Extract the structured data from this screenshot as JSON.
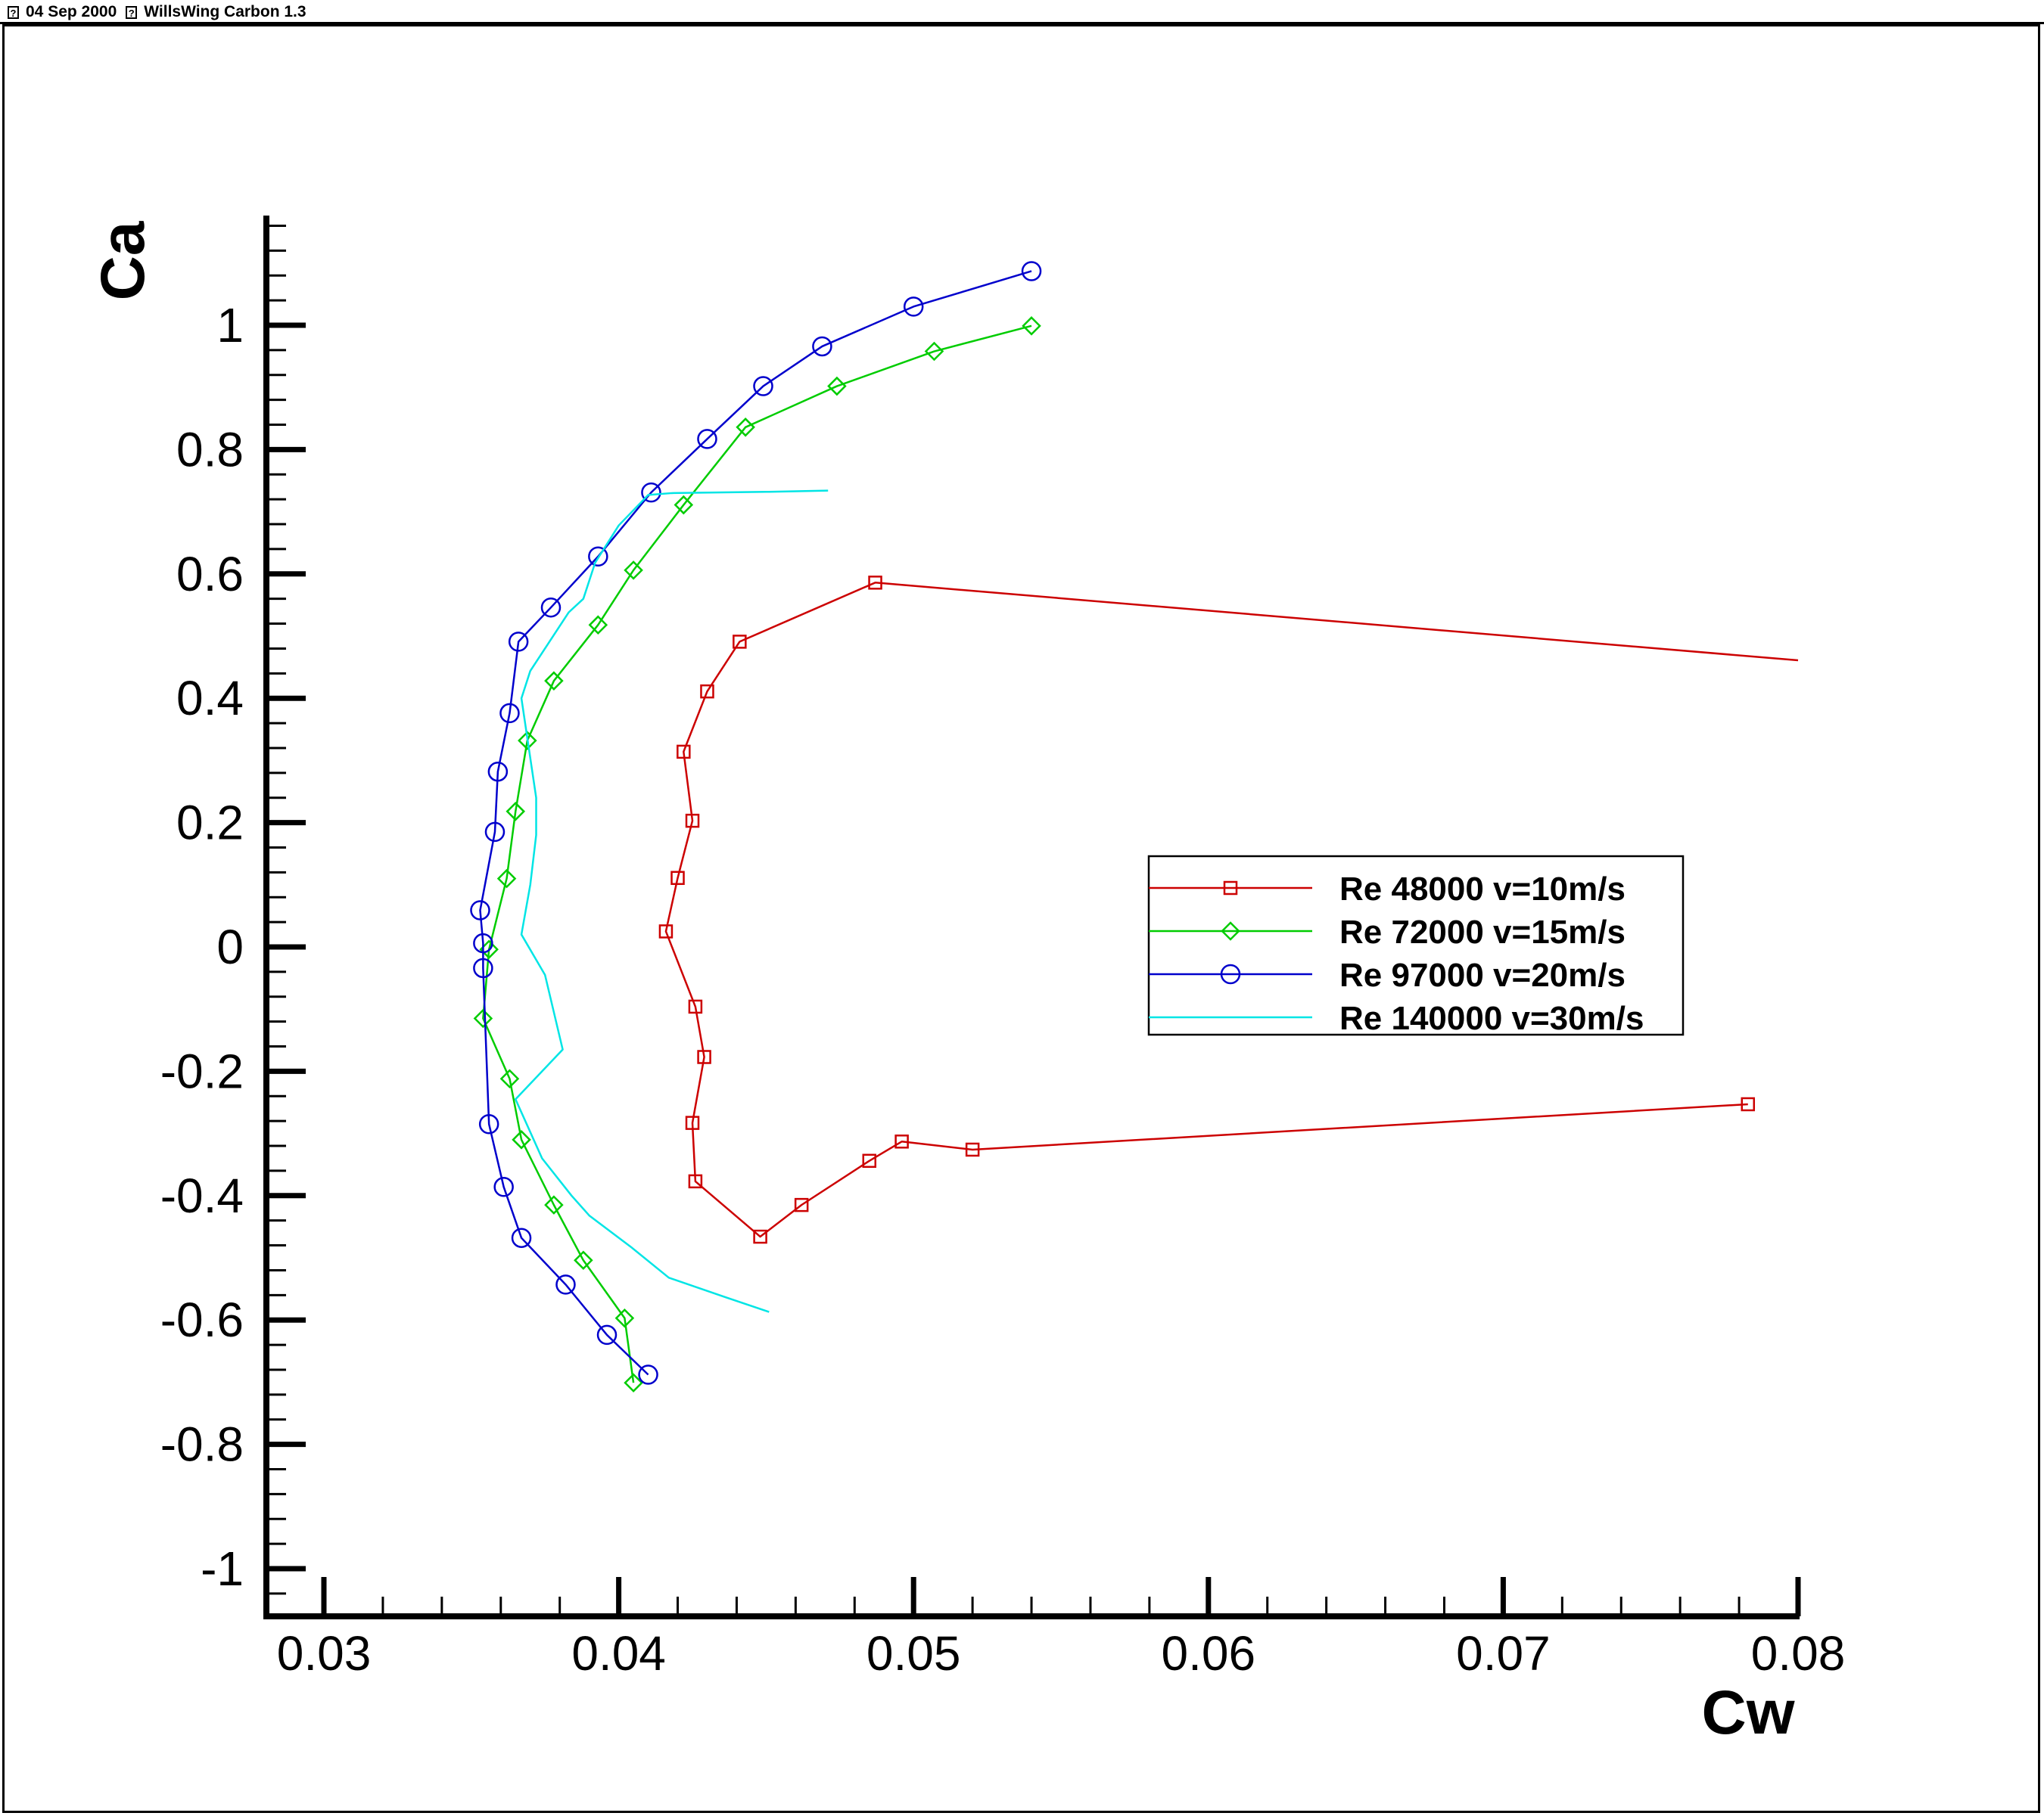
{
  "header": {
    "date": "04 Sep 2000",
    "title": "WillsWing Carbon 1.3",
    "marker_glyph": "?"
  },
  "chart_data": {
    "type": "line",
    "title": "",
    "xlabel": "Cw",
    "ylabel": "Ca",
    "xlim": [
      0.028,
      0.08
    ],
    "ylim": [
      -1.06,
      1.17
    ],
    "xticks": [
      0.03,
      0.04,
      0.05,
      0.06,
      0.07,
      0.08
    ],
    "xtick_labels": [
      "0.03",
      "0.04",
      "0.05",
      "0.06",
      "0.07",
      "0.08"
    ],
    "yticks": [
      -1,
      -0.8,
      -0.6,
      -0.4,
      -0.2,
      0,
      0.2,
      0.4,
      0.6,
      0.8,
      1
    ],
    "ytick_labels": [
      "-1",
      "-0.8",
      "-0.6",
      "-0.4",
      "-0.2",
      "0",
      "0.2",
      "0.4",
      "0.6",
      "0.8",
      "1"
    ],
    "grid": false,
    "legend_position": "right",
    "series": [
      {
        "name": "Re 48000 v=10m/s",
        "color": "#cc0000",
        "marker": "square",
        "points": [
          [
            0.08,
            0.461
          ],
          [
            0.0487,
            0.586
          ],
          [
            0.0441,
            0.491
          ],
          [
            0.043,
            0.411
          ],
          [
            0.0422,
            0.314
          ],
          [
            0.0425,
            0.203
          ],
          [
            0.042,
            0.111
          ],
          [
            0.0416,
            0.025
          ],
          [
            0.0426,
            -0.096
          ],
          [
            0.0429,
            -0.177
          ],
          [
            0.0425,
            -0.283
          ],
          [
            0.0426,
            -0.377
          ],
          [
            0.0448,
            -0.466
          ],
          [
            0.0462,
            -0.415
          ],
          [
            0.0485,
            -0.344
          ],
          [
            0.0496,
            -0.313
          ],
          [
            0.052,
            -0.326
          ],
          [
            0.0783,
            -0.253
          ]
        ]
      },
      {
        "name": "Re 72000 v=15m/s",
        "color": "#00cc00",
        "marker": "diamond",
        "points": [
          [
            0.054,
            0.999
          ],
          [
            0.0507,
            0.958
          ],
          [
            0.0474,
            0.902
          ],
          [
            0.0443,
            0.836
          ],
          [
            0.0422,
            0.711
          ],
          [
            0.0405,
            0.606
          ],
          [
            0.0393,
            0.518
          ],
          [
            0.0378,
            0.428
          ],
          [
            0.0369,
            0.332
          ],
          [
            0.0365,
            0.218
          ],
          [
            0.0362,
            0.11
          ],
          [
            0.0356,
            -0.004
          ],
          [
            0.0354,
            -0.115
          ],
          [
            0.0363,
            -0.212
          ],
          [
            0.0367,
            -0.31
          ],
          [
            0.0378,
            -0.415
          ],
          [
            0.0388,
            -0.504
          ],
          [
            0.0402,
            -0.597
          ],
          [
            0.0405,
            -0.701
          ]
        ]
      },
      {
        "name": "Re 97000 v=20m/s",
        "color": "#0000cc",
        "marker": "circle",
        "points": [
          [
            0.054,
            1.087
          ],
          [
            0.05,
            1.03
          ],
          [
            0.0469,
            0.966
          ],
          [
            0.0449,
            0.902
          ],
          [
            0.043,
            0.817
          ],
          [
            0.0411,
            0.731
          ],
          [
            0.0393,
            0.628
          ],
          [
            0.0377,
            0.546
          ],
          [
            0.0366,
            0.491
          ],
          [
            0.0363,
            0.376
          ],
          [
            0.0359,
            0.282
          ],
          [
            0.0358,
            0.185
          ],
          [
            0.0353,
            0.059
          ],
          [
            0.0354,
            0.006
          ],
          [
            0.0354,
            -0.034
          ],
          [
            0.0356,
            -0.285
          ],
          [
            0.0361,
            -0.386
          ],
          [
            0.0367,
            -0.468
          ],
          [
            0.0382,
            -0.543
          ],
          [
            0.0396,
            -0.624
          ],
          [
            0.041,
            -0.688
          ]
        ]
      },
      {
        "name": "Re 140000 v=30m/s",
        "color": "#00e5e5",
        "marker": "none",
        "points": [
          [
            0.0471,
            0.734
          ],
          [
            0.045,
            0.732
          ],
          [
            0.0418,
            0.73
          ],
          [
            0.041,
            0.727
          ],
          [
            0.04,
            0.678
          ],
          [
            0.0392,
            0.618
          ],
          [
            0.0388,
            0.56
          ],
          [
            0.0383,
            0.538
          ],
          [
            0.037,
            0.444
          ],
          [
            0.0367,
            0.4
          ],
          [
            0.0372,
            0.24
          ],
          [
            0.0372,
            0.18
          ],
          [
            0.037,
            0.1
          ],
          [
            0.0367,
            0.02
          ],
          [
            0.0375,
            -0.045
          ],
          [
            0.0381,
            -0.165
          ],
          [
            0.0365,
            -0.245
          ],
          [
            0.0374,
            -0.34
          ],
          [
            0.0384,
            -0.4
          ],
          [
            0.039,
            -0.432
          ],
          [
            0.0404,
            -0.482
          ],
          [
            0.0417,
            -0.532
          ],
          [
            0.0436,
            -0.563
          ],
          [
            0.0451,
            -0.587
          ]
        ]
      }
    ]
  }
}
